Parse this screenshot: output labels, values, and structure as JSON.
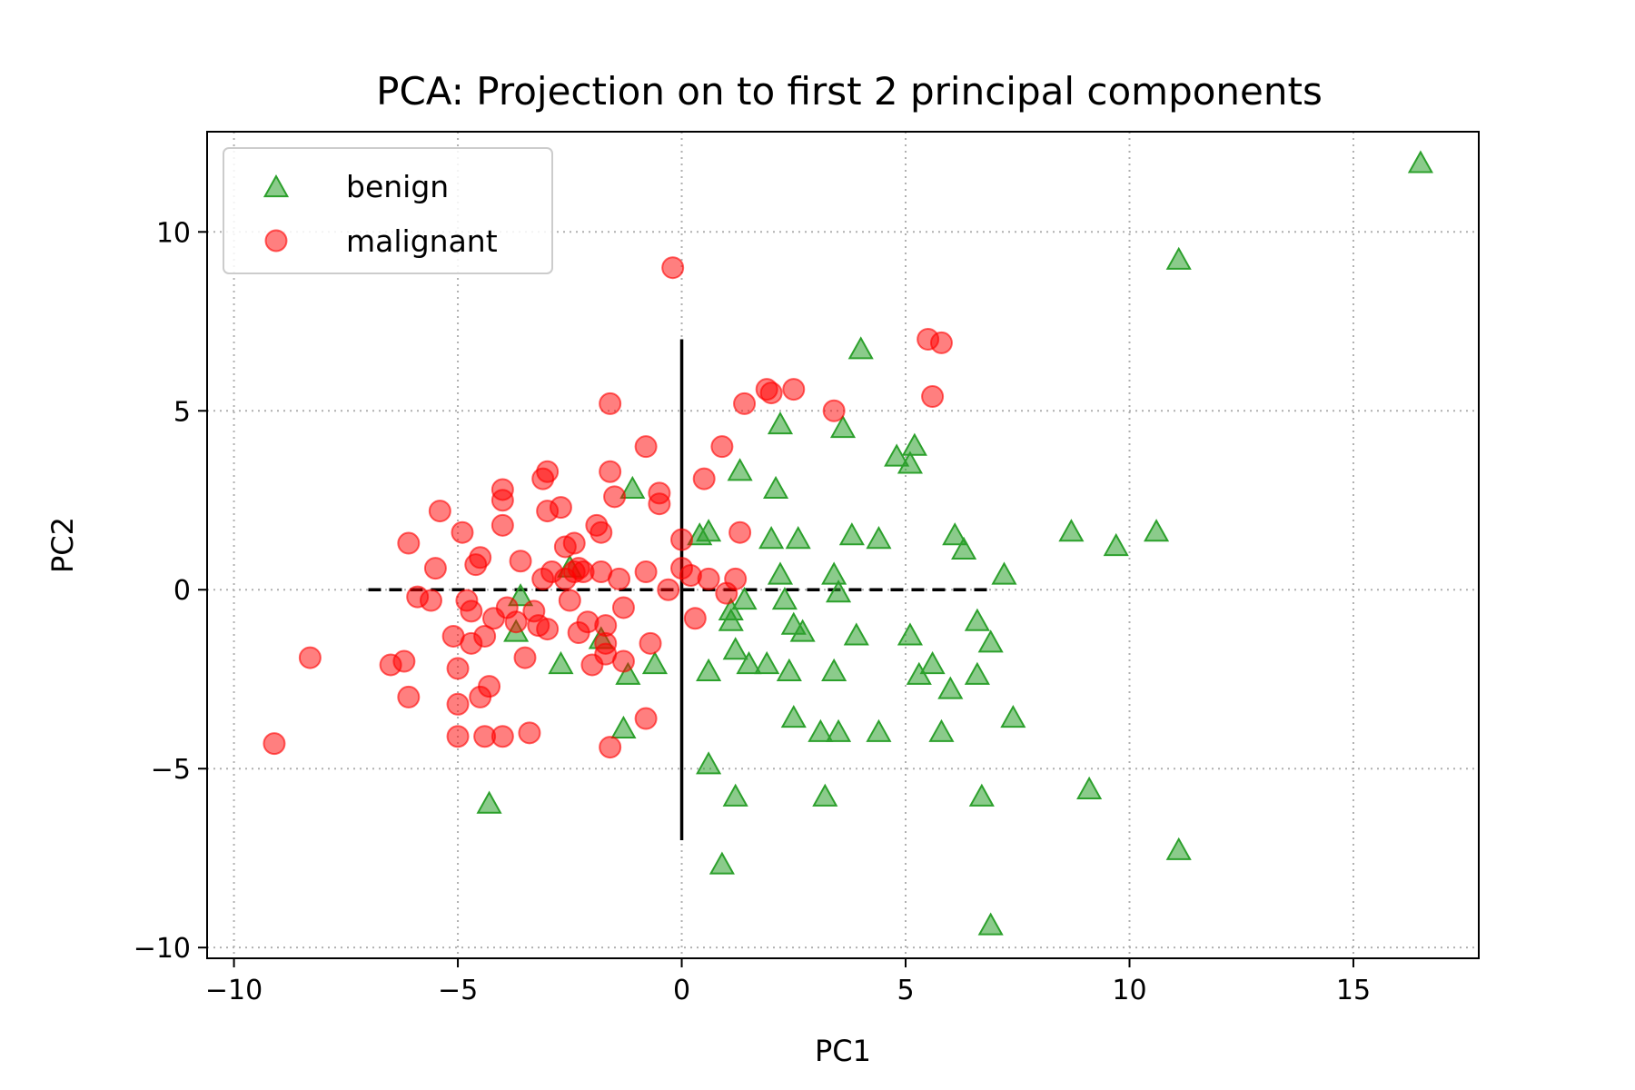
{
  "chart_data": {
    "type": "scatter",
    "title": "PCA: Projection on to first 2 principal components",
    "xlabel": "PC1",
    "ylabel": "PC2",
    "xlim": [
      -10.6,
      17.8
    ],
    "ylim": [
      -10.3,
      12.8
    ],
    "xticks": [
      -10,
      -5,
      0,
      5,
      10,
      15
    ],
    "yticks": [
      -10,
      -5,
      0,
      5,
      10
    ],
    "xtick_labels": [
      "−10",
      "−5",
      "0",
      "5",
      "10",
      "15"
    ],
    "ytick_labels": [
      "−10",
      "−5",
      "0",
      "5",
      "10"
    ],
    "grid": true,
    "legend_position": "top-left",
    "reference_lines": [
      {
        "style": "dashed",
        "from": [
          -7,
          0
        ],
        "to": [
          7,
          0
        ],
        "color": "#000000"
      },
      {
        "style": "solid",
        "from": [
          0,
          7
        ],
        "to": [
          0,
          -7
        ],
        "color": "#000000"
      }
    ],
    "series": [
      {
        "name": "benign",
        "marker": "triangle",
        "color": "#2ca02c",
        "points": [
          [
            16.5,
            11.9
          ],
          [
            11.1,
            9.2
          ],
          [
            11.1,
            -7.3
          ],
          [
            10.6,
            1.6
          ],
          [
            9.7,
            1.2
          ],
          [
            9.1,
            -5.6
          ],
          [
            8.7,
            1.6
          ],
          [
            7.4,
            -3.6
          ],
          [
            7.2,
            0.4
          ],
          [
            6.9,
            -1.5
          ],
          [
            6.7,
            -5.8
          ],
          [
            6.9,
            -9.4
          ],
          [
            6.6,
            -0.9
          ],
          [
            6.6,
            -2.4
          ],
          [
            6.3,
            1.1
          ],
          [
            6.1,
            1.5
          ],
          [
            6.0,
            -2.8
          ],
          [
            5.8,
            -4.0
          ],
          [
            5.6,
            -2.1
          ],
          [
            5.3,
            -2.4
          ],
          [
            5.1,
            -1.3
          ],
          [
            5.1,
            3.5
          ],
          [
            5.2,
            4.0
          ],
          [
            4.8,
            3.7
          ],
          [
            4.4,
            1.4
          ],
          [
            4.4,
            -4.0
          ],
          [
            4.0,
            6.7
          ],
          [
            3.8,
            1.5
          ],
          [
            3.9,
            -1.3
          ],
          [
            3.6,
            4.5
          ],
          [
            3.5,
            -4.0
          ],
          [
            3.4,
            0.4
          ],
          [
            3.5,
            -0.1
          ],
          [
            3.4,
            -2.3
          ],
          [
            3.2,
            -5.8
          ],
          [
            3.1,
            -4.0
          ],
          [
            2.7,
            -1.2
          ],
          [
            2.6,
            1.4
          ],
          [
            2.5,
            -1.0
          ],
          [
            2.5,
            -3.6
          ],
          [
            2.4,
            -2.3
          ],
          [
            2.3,
            -0.3
          ],
          [
            2.2,
            0.4
          ],
          [
            2.2,
            4.6
          ],
          [
            2.0,
            1.4
          ],
          [
            2.1,
            2.8
          ],
          [
            1.9,
            -2.1
          ],
          [
            1.5,
            -2.1
          ],
          [
            1.4,
            -0.3
          ],
          [
            1.3,
            3.3
          ],
          [
            1.2,
            -5.8
          ],
          [
            1.2,
            -1.7
          ],
          [
            1.1,
            -0.9
          ],
          [
            1.1,
            -0.6
          ],
          [
            0.9,
            -7.7
          ],
          [
            0.6,
            -4.9
          ],
          [
            0.6,
            -2.3
          ],
          [
            0.6,
            1.6
          ],
          [
            0.4,
            1.5
          ],
          [
            -0.6,
            -2.1
          ],
          [
            -1.2,
            -2.4
          ],
          [
            -1.3,
            -3.9
          ],
          [
            -1.1,
            2.8
          ],
          [
            -1.8,
            -1.4
          ],
          [
            -2.7,
            -2.1
          ],
          [
            -2.5,
            0.6
          ],
          [
            -3.7,
            -1.2
          ],
          [
            -3.6,
            -0.2
          ],
          [
            -4.3,
            -6.0
          ]
        ]
      },
      {
        "name": "malignant",
        "marker": "circle",
        "color": "#ff0000",
        "points": [
          [
            -9.1,
            -4.3
          ],
          [
            -8.3,
            -1.9
          ],
          [
            -6.5,
            -2.1
          ],
          [
            -6.2,
            -2.0
          ],
          [
            -6.1,
            -3.0
          ],
          [
            -6.1,
            1.3
          ],
          [
            -5.9,
            -0.2
          ],
          [
            -5.6,
            -0.3
          ],
          [
            -5.5,
            0.6
          ],
          [
            -5.4,
            2.2
          ],
          [
            -5.1,
            -1.3
          ],
          [
            -5.0,
            -2.2
          ],
          [
            -5.0,
            -3.2
          ],
          [
            -5.0,
            -4.1
          ],
          [
            -4.9,
            1.6
          ],
          [
            -4.8,
            -0.3
          ],
          [
            -4.7,
            -0.6
          ],
          [
            -4.7,
            -1.5
          ],
          [
            -4.6,
            0.7
          ],
          [
            -4.5,
            0.9
          ],
          [
            -4.5,
            -3.0
          ],
          [
            -4.4,
            -1.3
          ],
          [
            -4.3,
            -2.7
          ],
          [
            -4.4,
            -4.1
          ],
          [
            -4.2,
            -0.8
          ],
          [
            -4.0,
            2.5
          ],
          [
            -4.0,
            2.8
          ],
          [
            -4.0,
            1.8
          ],
          [
            -4.0,
            -4.1
          ],
          [
            -3.9,
            -0.5
          ],
          [
            -3.7,
            -0.9
          ],
          [
            -3.6,
            0.8
          ],
          [
            -3.5,
            -1.9
          ],
          [
            -3.4,
            -4.0
          ],
          [
            -3.3,
            -0.6
          ],
          [
            -3.2,
            -1.0
          ],
          [
            -3.1,
            3.1
          ],
          [
            -3.1,
            0.3
          ],
          [
            -3.0,
            2.2
          ],
          [
            -3.0,
            3.3
          ],
          [
            -3.0,
            -1.1
          ],
          [
            -2.9,
            0.5
          ],
          [
            -2.7,
            2.3
          ],
          [
            -2.6,
            1.2
          ],
          [
            -2.6,
            0.3
          ],
          [
            -2.5,
            -0.3
          ],
          [
            -2.4,
            1.3
          ],
          [
            -2.3,
            -1.2
          ],
          [
            -2.4,
            0.5
          ],
          [
            -2.3,
            0.6
          ],
          [
            -2.2,
            0.5
          ],
          [
            -2.1,
            -0.9
          ],
          [
            -2.0,
            -2.1
          ],
          [
            -1.9,
            1.8
          ],
          [
            -1.8,
            1.6
          ],
          [
            -1.8,
            0.5
          ],
          [
            -1.6,
            5.2
          ],
          [
            -1.6,
            3.3
          ],
          [
            -1.7,
            -1.0
          ],
          [
            -1.7,
            -1.5
          ],
          [
            -1.5,
            2.6
          ],
          [
            -1.6,
            -4.4
          ],
          [
            -1.7,
            -1.8
          ],
          [
            -1.4,
            0.3
          ],
          [
            -1.3,
            -0.5
          ],
          [
            -1.3,
            -2.0
          ],
          [
            -0.8,
            4.0
          ],
          [
            -0.8,
            0.5
          ],
          [
            -0.8,
            -3.6
          ],
          [
            -0.7,
            -1.5
          ],
          [
            -0.5,
            2.7
          ],
          [
            -0.5,
            2.4
          ],
          [
            -0.3,
            0.0
          ],
          [
            -0.2,
            9.0
          ],
          [
            0.0,
            1.4
          ],
          [
            0.0,
            0.6
          ],
          [
            0.2,
            0.4
          ],
          [
            0.3,
            -0.8
          ],
          [
            0.5,
            3.1
          ],
          [
            0.6,
            0.3
          ],
          [
            0.9,
            4.0
          ],
          [
            1.0,
            -0.1
          ],
          [
            1.2,
            0.3
          ],
          [
            1.3,
            1.6
          ],
          [
            1.4,
            5.2
          ],
          [
            1.9,
            5.6
          ],
          [
            2.0,
            5.5
          ],
          [
            2.5,
            5.6
          ],
          [
            3.4,
            5.0
          ],
          [
            5.5,
            7.0
          ],
          [
            5.8,
            6.9
          ],
          [
            5.6,
            5.4
          ]
        ]
      }
    ]
  }
}
